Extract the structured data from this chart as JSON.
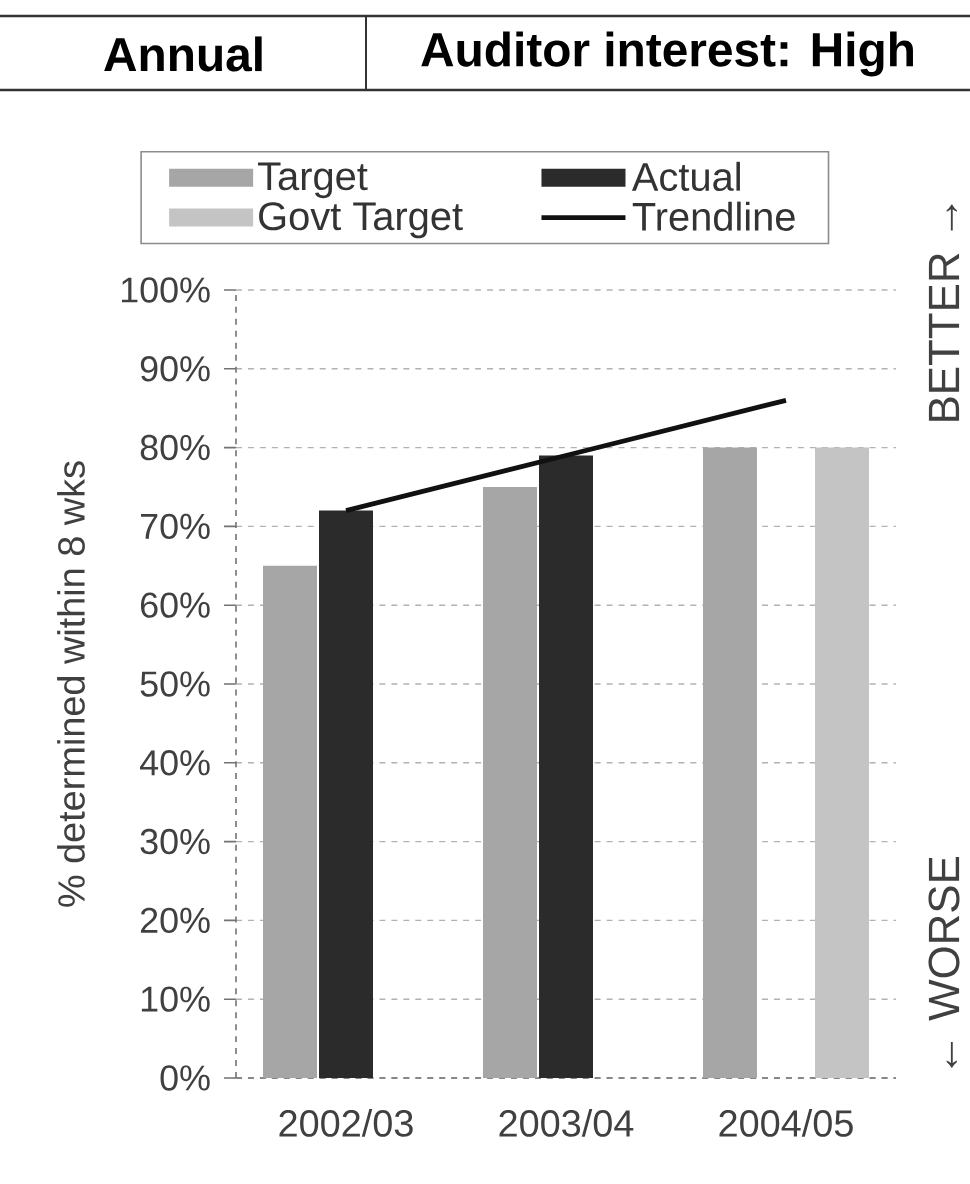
{
  "chart_data": {
    "type": "bar",
    "title": "Annual",
    "subtitle": "Auditor interest: High",
    "ylabel": "% determined within 8 wks",
    "categories": [
      "2002/03",
      "2003/04",
      "2004/05"
    ],
    "series": [
      {
        "name": "Target",
        "color": "#a6a6a6",
        "values": [
          65,
          75,
          80
        ]
      },
      {
        "name": "Actual",
        "color": "#2b2b2b",
        "values": [
          72,
          79,
          null
        ]
      },
      {
        "name": "Govt Target",
        "color": "#c4c4c4",
        "values": [
          null,
          null,
          80
        ]
      },
      {
        "name": "Trendline",
        "type": "line",
        "color": "#111111",
        "values": [
          72,
          79,
          86
        ]
      }
    ],
    "ylim": [
      0,
      100
    ],
    "yticks": [
      {
        "value": 0,
        "label": "0%"
      },
      {
        "value": 10,
        "label": "10%"
      },
      {
        "value": 20,
        "label": "20%"
      },
      {
        "value": 30,
        "label": "30%"
      },
      {
        "value": 40,
        "label": "40%"
      },
      {
        "value": 50,
        "label": "50%"
      },
      {
        "value": 60,
        "label": "60%"
      },
      {
        "value": 70,
        "label": "70%"
      },
      {
        "value": 80,
        "label": "80%"
      },
      {
        "value": 90,
        "label": "90%"
      },
      {
        "value": 100,
        "label": "100%"
      }
    ],
    "grid": "y",
    "legend": "top",
    "annotations": [
      "BETTER →",
      "← WORSE"
    ]
  }
}
